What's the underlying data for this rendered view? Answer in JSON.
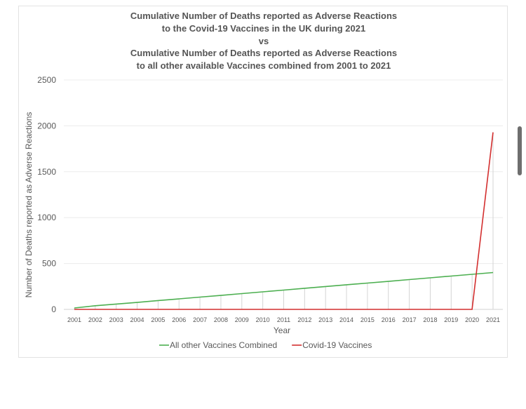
{
  "chart_data": {
    "type": "line",
    "title_lines": [
      "Cumulative Number of Deaths reported as Adverse Reactions",
      "to the Covid-19 Vaccines in the UK during 2021",
      "vs",
      "Cumulative Number of Deaths reported as Adverse Reactions",
      "to all other available Vaccines combined from 2001 to 2021"
    ],
    "xlabel": "Year",
    "ylabel": "Number of Deaths reported as Adverse Reactions",
    "ylim": [
      0,
      2500
    ],
    "yticks": [
      "0",
      "500",
      "1000",
      "1500",
      "2000",
      "2500"
    ],
    "categories": [
      "2001",
      "2002",
      "2003",
      "2004",
      "2005",
      "2006",
      "2007",
      "2008",
      "2009",
      "2010",
      "2011",
      "2012",
      "2013",
      "2014",
      "2015",
      "2016",
      "2017",
      "2018",
      "2019",
      "2020",
      "2021"
    ],
    "series": [
      {
        "name": "All other Vaccines Combined",
        "color": "#4caf50",
        "values": [
          15,
          40,
          58,
          76,
          96,
          115,
          134,
          152,
          172,
          191,
          210,
          230,
          249,
          268,
          287,
          305,
          325,
          344,
          363,
          382,
          401
        ]
      },
      {
        "name": "Covid-19 Vaccines",
        "color": "#d32f2f",
        "values": [
          0,
          0,
          0,
          0,
          0,
          0,
          0,
          0,
          0,
          0,
          0,
          0,
          0,
          0,
          0,
          0,
          0,
          0,
          0,
          0,
          1930
        ]
      }
    ],
    "grid": true,
    "legend_position": "bottom"
  }
}
